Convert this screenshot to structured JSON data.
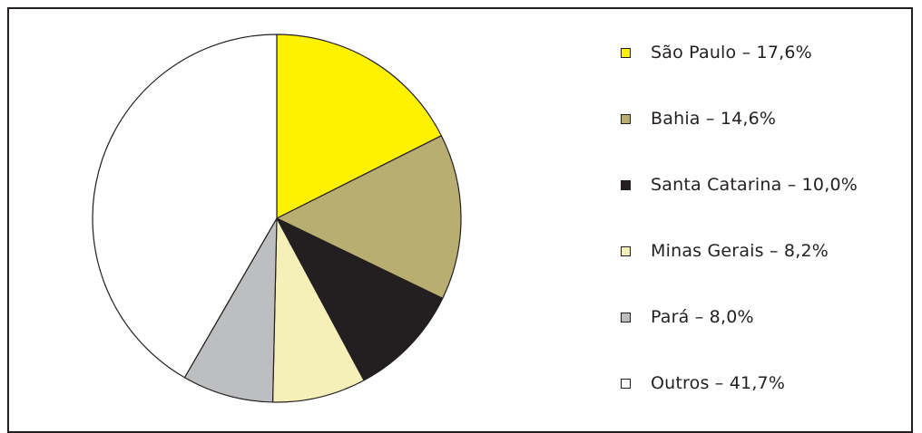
{
  "chart_data": {
    "type": "pie",
    "series": [
      {
        "name": "São Paulo",
        "value": 17.6,
        "label": "São Paulo – 17,6%",
        "color": "#fff200"
      },
      {
        "name": "Bahia",
        "value": 14.6,
        "label": "Bahia – 14,6%",
        "color": "#b8ae72"
      },
      {
        "name": "Santa Catarina",
        "value": 10.0,
        "label": "Santa Catarina – 10,0%",
        "color": "#231f20"
      },
      {
        "name": "Minas Gerais",
        "value": 8.2,
        "label": "Minas Gerais – 8,2%",
        "color": "#f5efb8"
      },
      {
        "name": "Pará",
        "value": 8.0,
        "label": "Pará – 8,0%",
        "color": "#bdbec0"
      },
      {
        "name": "Outros",
        "value": 41.7,
        "label": "Outros – 41,7%",
        "color": "#ffffff"
      }
    ],
    "legend_position": "right",
    "start_angle": "top",
    "direction": "clockwise"
  }
}
